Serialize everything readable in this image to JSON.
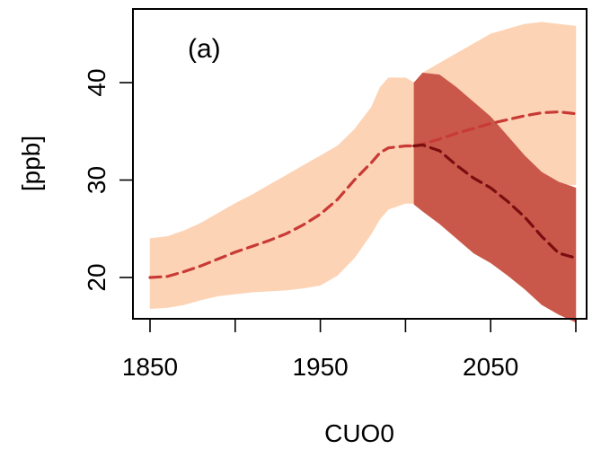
{
  "chart_data": {
    "type": "area",
    "title": "",
    "panel_label": "(a)",
    "xlabel": "CUO0",
    "ylabel": "[ppb]",
    "xlim": [
      1840,
      2105
    ],
    "ylim": [
      15,
      46
    ],
    "xticks": [
      1850,
      1900,
      1950,
      2000,
      2050,
      2100
    ],
    "xtick_labels": [
      "1850",
      "",
      "1950",
      "",
      "2050",
      ""
    ],
    "yticks": [
      20,
      30,
      40
    ],
    "ytick_labels": [
      "20",
      "30",
      "40"
    ],
    "grid": false,
    "legend": "none",
    "series": [
      {
        "period": "historical",
        "kind": "band",
        "color": "#fdd3b5",
        "x": [
          1850,
          1860,
          1870,
          1880,
          1890,
          1900,
          1910,
          1920,
          1930,
          1940,
          1950,
          1960,
          1970,
          1980,
          1985,
          1990,
          2000,
          2005
        ],
        "lower": [
          16.8,
          16.9,
          17.2,
          17.7,
          18.1,
          18.3,
          18.5,
          18.6,
          18.7,
          18.9,
          19.2,
          20.2,
          22.0,
          24.5,
          26.0,
          27.0,
          27.6,
          27.6
        ],
        "upper": [
          24.0,
          24.2,
          24.8,
          25.6,
          26.6,
          27.6,
          28.5,
          29.5,
          30.5,
          31.5,
          32.5,
          33.5,
          35.2,
          37.5,
          39.5,
          40.5,
          40.5,
          40.0
        ]
      },
      {
        "period": "historical",
        "kind": "mean",
        "color": "#c83a35",
        "x": [
          1850,
          1860,
          1870,
          1880,
          1890,
          1900,
          1910,
          1920,
          1930,
          1940,
          1950,
          1960,
          1970,
          1980,
          1985,
          1990,
          2000,
          2005
        ],
        "value": [
          20.0,
          20.1,
          20.6,
          21.2,
          21.9,
          22.6,
          23.2,
          23.8,
          24.5,
          25.4,
          26.5,
          28.0,
          30.0,
          31.8,
          32.8,
          33.3,
          33.5,
          33.5
        ]
      },
      {
        "period": "scenario-high",
        "kind": "band",
        "color": "#fdd3b5",
        "x": [
          2005,
          2010,
          2020,
          2030,
          2040,
          2050,
          2060,
          2070,
          2080,
          2090,
          2100
        ],
        "lower": [
          27.5,
          28.5,
          29.5,
          30.2,
          30.5,
          30.5,
          30.0,
          29.7,
          29.6,
          29.5,
          29.5
        ],
        "upper": [
          40.0,
          41.0,
          42.0,
          43.0,
          44.0,
          45.0,
          45.5,
          46.0,
          46.2,
          46.0,
          45.8
        ]
      },
      {
        "period": "scenario-high",
        "kind": "mean",
        "color": "#c83a35",
        "x": [
          2005,
          2010,
          2020,
          2030,
          2040,
          2050,
          2060,
          2070,
          2080,
          2090,
          2100
        ],
        "value": [
          33.5,
          33.7,
          34.2,
          34.8,
          35.3,
          35.8,
          36.2,
          36.6,
          36.9,
          37.0,
          36.8
        ]
      },
      {
        "period": "scenario-low",
        "kind": "band",
        "color": "#c9584a",
        "x": [
          2005,
          2010,
          2020,
          2030,
          2040,
          2050,
          2060,
          2070,
          2080,
          2090,
          2100
        ],
        "lower": [
          27.5,
          26.8,
          25.5,
          24.0,
          22.5,
          21.5,
          20.2,
          18.8,
          17.2,
          16.2,
          15.4
        ],
        "upper": [
          40.0,
          41.0,
          40.8,
          39.5,
          38.0,
          36.5,
          34.5,
          32.5,
          30.8,
          29.8,
          29.2
        ]
      },
      {
        "period": "scenario-low",
        "kind": "mean",
        "color": "#7a0d10",
        "x": [
          2005,
          2010,
          2020,
          2030,
          2040,
          2050,
          2060,
          2070,
          2080,
          2090,
          2100
        ],
        "value": [
          33.5,
          33.6,
          33.0,
          31.5,
          30.2,
          29.2,
          27.8,
          26.2,
          24.2,
          22.5,
          22.0
        ]
      }
    ]
  }
}
